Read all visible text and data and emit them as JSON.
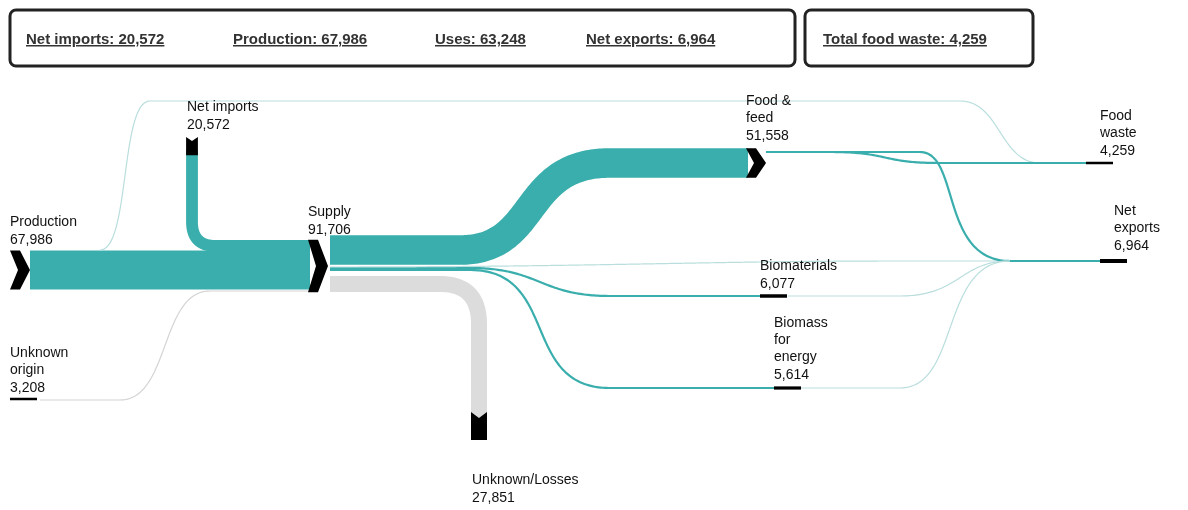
{
  "chart_data": {
    "type": "other",
    "categories": [
      "Production",
      "Net imports",
      "Unknown origin",
      "Supply",
      "Food & feed",
      "Biomaterials",
      "Biomass for energy",
      "Unknown/Losses",
      "Food waste",
      "Net exports"
    ],
    "values": [
      67986,
      20572,
      3208,
      91706,
      51558,
      6077,
      5614,
      27851,
      4259,
      6964
    ],
    "value_labels": [
      "67,986",
      "20,572",
      "3,208",
      "91,706",
      "51,558",
      "6,077",
      "5,614",
      "27,851",
      "4,259",
      "6,964"
    ],
    "annotations": [
      "Net imports: 20,572",
      "Production: 67,986",
      "Uses: 63,248",
      "Net exports: 6,964",
      "Total food waste: 4,259"
    ]
  }
}
